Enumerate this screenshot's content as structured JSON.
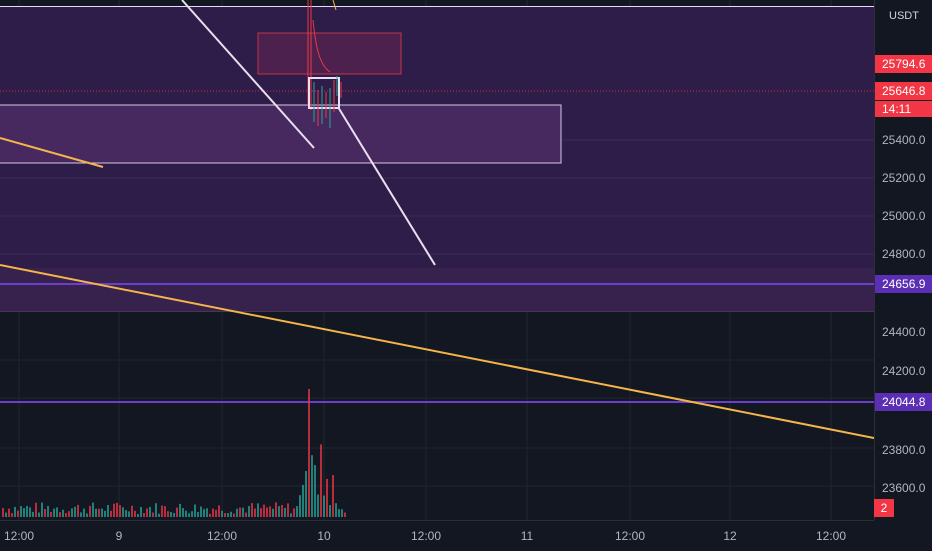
{
  "price_axis": {
    "currency": "USDT",
    "ticks": [
      "25400.0",
      "25200.0",
      "25000.0",
      "24800.0",
      "24400.0",
      "24200.0",
      "23800.0",
      "23600.0"
    ],
    "last_price": "25794.6",
    "current_price": "25646.8",
    "countdown": "14:11",
    "level_1": "24656.9",
    "level_2": "24044.8"
  },
  "time_axis": {
    "labels": [
      "12:00",
      "9",
      "12:00",
      "10",
      "12:00",
      "11",
      "12:00",
      "12",
      "12:00"
    ]
  },
  "corner_badge": "2",
  "colors": {
    "background": "#131722",
    "zone_purple": "#2e1d48",
    "level_line": "#5b2fb3",
    "trendline_orange": "#f5b54a",
    "trendline_white": "#e8dff0",
    "up_candle": "#26a69a",
    "down_candle": "#f23645"
  },
  "chart_data": {
    "type": "candlestick",
    "price_levels": [
      24656.9,
      24044.8
    ],
    "last_price": 25794.6,
    "current_price": 25646.8,
    "x_labels": [
      "12:00",
      "9",
      "12:00",
      "10",
      "12:00",
      "11",
      "12:00",
      "12",
      "12:00"
    ]
  }
}
